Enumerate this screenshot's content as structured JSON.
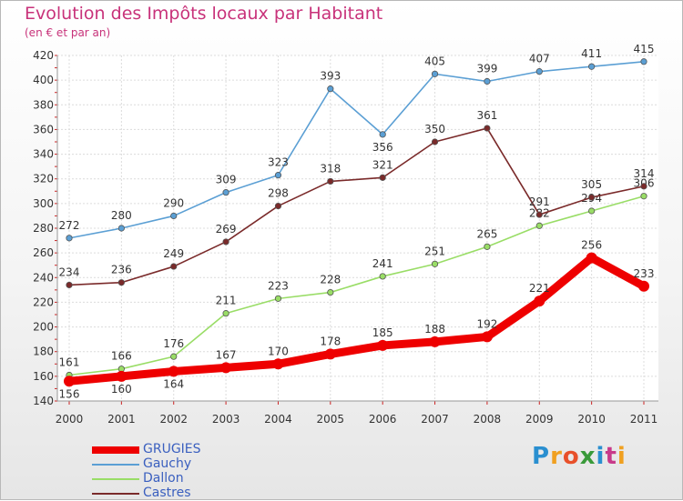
{
  "chart_data": {
    "type": "line",
    "title": "Evolution des Impôts locaux par Habitant",
    "subtitle": "(en € et par an)",
    "categories": [
      "2000",
      "2001",
      "2002",
      "2003",
      "2004",
      "2005",
      "2006",
      "2007",
      "2008",
      "2009",
      "2010",
      "2011"
    ],
    "ylim": [
      140,
      420
    ],
    "yticks": [
      140,
      160,
      180,
      200,
      220,
      240,
      260,
      280,
      300,
      320,
      340,
      360,
      380,
      400,
      420
    ],
    "grid": true,
    "legend_position": "bottom-left",
    "series": [
      {
        "name": "GRUGIES",
        "color": "#ee0000",
        "values": [
          156,
          160,
          164,
          167,
          170,
          178,
          185,
          188,
          192,
          221,
          256,
          233
        ],
        "labels": [
          "156",
          "160",
          "164",
          "167",
          "170",
          "178",
          "185",
          "188",
          "192",
          "221",
          "256",
          "233"
        ]
      },
      {
        "name": "Gauchy",
        "color": "#5b9fd4",
        "values": [
          272,
          280,
          290,
          309,
          323,
          393,
          356,
          405,
          399,
          407,
          411,
          415
        ],
        "labels": [
          "272",
          "280",
          "290",
          "309",
          "323",
          "393",
          "356",
          "405",
          "399",
          "407",
          "411",
          "415"
        ]
      },
      {
        "name": "Dallon",
        "color": "#99dd66",
        "values": [
          161,
          166,
          176,
          211,
          223,
          228,
          241,
          251,
          265,
          282,
          294,
          306
        ],
        "labels": [
          "161",
          "166",
          "176",
          "211",
          "223",
          "228",
          "241",
          "251",
          "265",
          "282",
          "294",
          "306"
        ]
      },
      {
        "name": "Castres",
        "color": "#7a2a2a",
        "values": [
          234,
          236,
          249,
          269,
          298,
          318,
          321,
          350,
          361,
          291,
          305,
          314
        ],
        "labels": [
          "234",
          "236",
          "249",
          "269",
          "298",
          "318",
          "321",
          "350",
          "361",
          "291",
          "305",
          "314"
        ]
      }
    ]
  },
  "legend": {
    "items": [
      {
        "label": "GRUGIES",
        "color": "#ee0000"
      },
      {
        "label": "Gauchy",
        "color": "#5b9fd4"
      },
      {
        "label": "Dallon",
        "color": "#99dd66"
      },
      {
        "label": "Castres",
        "color": "#7a2a2a"
      }
    ]
  },
  "logo": {
    "letters": [
      "P",
      "r",
      "o",
      "x",
      "i",
      "t",
      "i"
    ],
    "colors": [
      "#2a8fd0",
      "#f0a020",
      "#e8502a",
      "#3a9a3a",
      "#2a8fd0",
      "#c83a8a",
      "#f0a020"
    ]
  }
}
